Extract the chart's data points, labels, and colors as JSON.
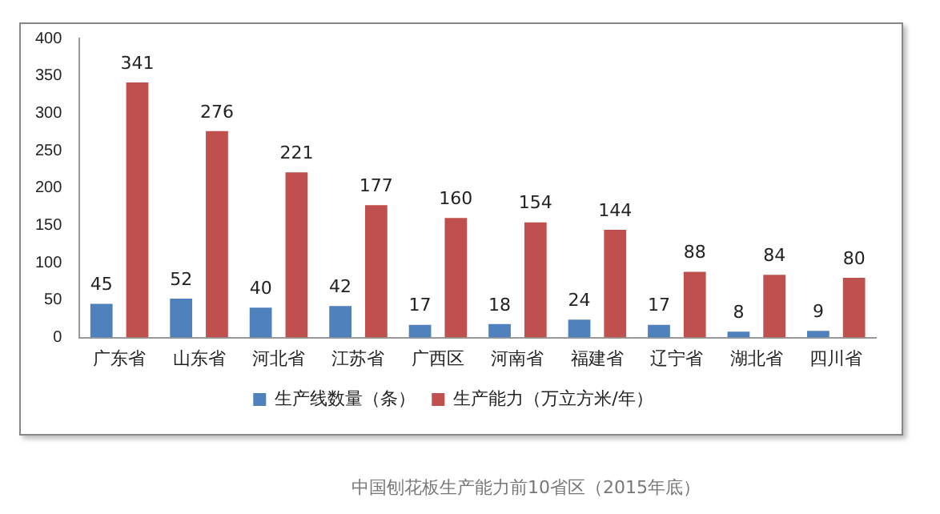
{
  "chart_data": {
    "type": "bar",
    "categories": [
      "广东省",
      "山东省",
      "河北省",
      "江苏省",
      "广西区",
      "河南省",
      "福建省",
      "辽宁省",
      "湖北省",
      "四川省"
    ],
    "series": [
      {
        "name": "生产线数量（条）",
        "color": "#4f81bd",
        "values": [
          45,
          52,
          40,
          42,
          17,
          18,
          24,
          17,
          8,
          9
        ]
      },
      {
        "name": "生产能力（万立方米/年）",
        "color": "#c0504d",
        "values": [
          341,
          276,
          221,
          177,
          160,
          154,
          144,
          88,
          84,
          80
        ]
      }
    ],
    "ylim": [
      0,
      400
    ],
    "yticks": [
      0,
      50,
      100,
      150,
      200,
      250,
      300,
      350,
      400
    ],
    "grid": false,
    "legend": "bottom",
    "data_labels": true,
    "annotations": [
      "中国刨花板生产能力前10省区（2015年底）"
    ]
  }
}
